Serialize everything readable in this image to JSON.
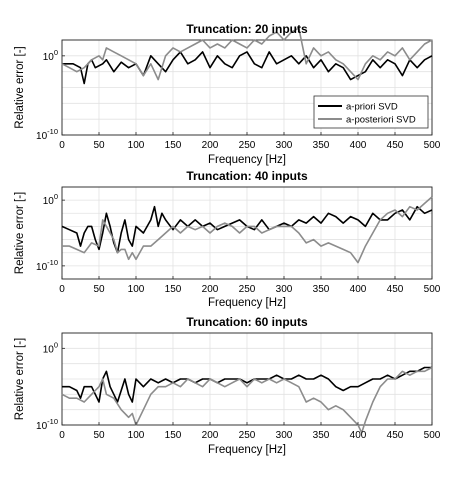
{
  "chart_data": [
    {
      "type": "line",
      "title": "Truncation: 20 inputs",
      "xlabel": "Frequency [Hz]",
      "ylabel": "Relative error [-]",
      "xlim": [
        0,
        500
      ],
      "xticks": [
        0,
        50,
        100,
        150,
        200,
        250,
        300,
        350,
        400,
        450,
        500
      ],
      "yscale": "log",
      "ylim_exp": [
        -10,
        2
      ],
      "yticks": [
        {
          "label": "10",
          "exp": "0",
          "value_exp": 0
        },
        {
          "label": "10",
          "exp": "-10",
          "value_exp": -10
        }
      ],
      "grid": true,
      "legend": {
        "placement": "bottom-right"
      },
      "series": [
        {
          "name": "a-priori SVD",
          "color": "#000000",
          "x": [
            0,
            15,
            25,
            30,
            35,
            40,
            45,
            55,
            60,
            70,
            80,
            90,
            100,
            110,
            120,
            130,
            140,
            150,
            160,
            170,
            180,
            190,
            200,
            210,
            220,
            230,
            240,
            250,
            260,
            270,
            280,
            290,
            300,
            310,
            320,
            330,
            340,
            350,
            360,
            370,
            380,
            390,
            400,
            410,
            420,
            430,
            440,
            450,
            460,
            470,
            480,
            490,
            500
          ],
          "y_exp": [
            -1,
            -1,
            -1.5,
            -3.5,
            -1,
            -0.5,
            -1.5,
            -1,
            -0.5,
            -2,
            -0.8,
            -1.5,
            -1,
            -2.5,
            0,
            -1,
            -2,
            -0.5,
            0.5,
            -1,
            -0.5,
            0.5,
            -1.5,
            0,
            -1,
            -1.5,
            0,
            0.5,
            -1,
            -1.5,
            0.5,
            -1,
            -0.5,
            0,
            -1,
            0,
            -1.5,
            -0.5,
            -2,
            -1,
            -1.5,
            -3,
            -2.5,
            -2,
            -0.5,
            -1.5,
            -0.5,
            -1,
            -2.5,
            -0.5,
            -1.5,
            -0.5,
            0
          ]
        },
        {
          "name": "a-posteriori SVD",
          "color": "#8c8c8c",
          "x": [
            0,
            10,
            20,
            30,
            40,
            50,
            55,
            60,
            70,
            80,
            90,
            100,
            110,
            120,
            130,
            140,
            150,
            160,
            170,
            180,
            190,
            200,
            210,
            220,
            230,
            240,
            250,
            260,
            270,
            280,
            290,
            300,
            310,
            320,
            330,
            340,
            350,
            360,
            370,
            380,
            390,
            400,
            410,
            420,
            430,
            440,
            450,
            460,
            470,
            480,
            490,
            500
          ],
          "y_exp": [
            -1,
            -1.5,
            -2,
            -1.5,
            -0.5,
            0,
            -0.5,
            1,
            0.5,
            0,
            -0.5,
            -1,
            -2.5,
            -1,
            -3,
            0,
            1,
            0.5,
            1,
            1.5,
            2,
            1,
            1.5,
            1,
            2,
            1.5,
            1,
            2,
            1.5,
            2.5,
            3,
            2,
            3,
            3.5,
            -1,
            1,
            0,
            0.5,
            -0.5,
            -1,
            -2,
            -3,
            -1,
            0,
            -0.5,
            0.5,
            0,
            1,
            -0.5,
            0.5,
            1.5,
            2
          ]
        }
      ]
    },
    {
      "type": "line",
      "title": "Truncation: 40 inputs",
      "xlabel": "Frequency [Hz]",
      "ylabel": "Relative error [-]",
      "xlim": [
        0,
        500
      ],
      "xticks": [
        0,
        50,
        100,
        150,
        200,
        250,
        300,
        350,
        400,
        450,
        500
      ],
      "yscale": "log",
      "ylim_exp": [
        -12,
        2
      ],
      "yticks": [
        {
          "label": "10",
          "exp": "0",
          "value_exp": 0
        },
        {
          "label": "10",
          "exp": "-10",
          "value_exp": -10
        }
      ],
      "grid": true,
      "series": [
        {
          "name": "a-priori SVD",
          "color": "#000000",
          "x": [
            0,
            10,
            20,
            25,
            30,
            35,
            40,
            45,
            50,
            55,
            60,
            65,
            70,
            75,
            80,
            85,
            90,
            95,
            100,
            110,
            120,
            125,
            130,
            135,
            140,
            150,
            160,
            170,
            180,
            190,
            200,
            210,
            220,
            230,
            240,
            250,
            260,
            270,
            280,
            290,
            300,
            310,
            320,
            330,
            340,
            350,
            360,
            370,
            380,
            390,
            400,
            410,
            420,
            430,
            440,
            450,
            460,
            470,
            480,
            490,
            500
          ],
          "y_exp": [
            -4,
            -4.5,
            -5,
            -7,
            -5,
            -4,
            -4,
            -6,
            -7.5,
            -5,
            -2,
            -4,
            -6.5,
            -8,
            -5,
            -3,
            -6,
            -7,
            -4,
            -5,
            -3,
            -1,
            -4,
            -2,
            -3,
            -4.5,
            -3,
            -4,
            -3,
            -4,
            -3.5,
            -4.5,
            -4,
            -3.5,
            -3,
            -4,
            -4.5,
            -3,
            -4.5,
            -4,
            -3.5,
            -4,
            -3,
            -3.5,
            -2.5,
            -3.5,
            -2,
            -2.5,
            -3.5,
            -2.5,
            -3,
            -4,
            -2,
            -3,
            -3,
            -2,
            -1.5,
            -3,
            -1,
            -2,
            -1.5
          ]
        },
        {
          "name": "a-posteriori SVD",
          "color": "#8c8c8c",
          "x": [
            0,
            10,
            20,
            30,
            40,
            50,
            55,
            60,
            70,
            75,
            80,
            85,
            90,
            95,
            100,
            110,
            120,
            130,
            140,
            150,
            160,
            170,
            180,
            190,
            200,
            210,
            220,
            230,
            240,
            250,
            260,
            270,
            280,
            290,
            300,
            310,
            320,
            330,
            340,
            350,
            360,
            370,
            380,
            390,
            400,
            410,
            420,
            430,
            440,
            450,
            460,
            470,
            480,
            490,
            500
          ],
          "y_exp": [
            -7,
            -7,
            -7.5,
            -8,
            -6.5,
            -7,
            -3,
            -4,
            -6,
            -8,
            -7.5,
            -7.5,
            -9,
            -8,
            -9,
            -7,
            -7,
            -6,
            -5,
            -4,
            -5,
            -4,
            -4.5,
            -4,
            -5,
            -4,
            -3.5,
            -4,
            -5,
            -4,
            -4,
            -5,
            -4.5,
            -4,
            -4,
            -4,
            -5,
            -6.5,
            -6,
            -7,
            -6.5,
            -7,
            -7.5,
            -8,
            -9.5,
            -7,
            -5,
            -3,
            -2,
            -1.5,
            -2.5,
            -1,
            -1.5,
            -0.5,
            0.5
          ]
        }
      ]
    },
    {
      "type": "line",
      "title": "Truncation: 60 inputs",
      "xlabel": "Frequency [Hz]",
      "ylabel": "Relative error [-]",
      "xlim": [
        0,
        500
      ],
      "xticks": [
        0,
        50,
        100,
        150,
        200,
        250,
        300,
        350,
        400,
        450,
        500
      ],
      "yscale": "log",
      "ylim_exp": [
        -10,
        2
      ],
      "yticks": [
        {
          "label": "10",
          "exp": "0",
          "value_exp": 0
        },
        {
          "label": "10",
          "exp": "-10",
          "value_exp": -10
        }
      ],
      "grid": true,
      "series": [
        {
          "name": "a-priori SVD",
          "color": "#000000",
          "x": [
            0,
            10,
            20,
            25,
            30,
            40,
            45,
            50,
            55,
            60,
            65,
            70,
            75,
            80,
            85,
            90,
            95,
            100,
            110,
            120,
            130,
            140,
            150,
            160,
            170,
            180,
            190,
            200,
            210,
            220,
            230,
            240,
            250,
            260,
            270,
            280,
            290,
            300,
            310,
            320,
            330,
            340,
            350,
            360,
            370,
            380,
            390,
            400,
            410,
            420,
            430,
            440,
            450,
            460,
            470,
            480,
            490,
            500
          ],
          "y_exp": [
            -5,
            -5,
            -5.5,
            -6.5,
            -5,
            -5,
            -6,
            -7,
            -4,
            -3,
            -5,
            -6,
            -7,
            -5.5,
            -4,
            -6,
            -7,
            -4,
            -5,
            -4,
            -4.5,
            -4,
            -4.5,
            -4,
            -4,
            -4.5,
            -4,
            -4,
            -4.5,
            -4,
            -4,
            -4,
            -4.5,
            -4,
            -4,
            -4,
            -3.5,
            -4,
            -4,
            -3.5,
            -4,
            -4,
            -3.5,
            -4,
            -5,
            -5.5,
            -5,
            -5,
            -4.5,
            -4,
            -4,
            -3.5,
            -4,
            -3.5,
            -3,
            -3,
            -2.5,
            -2.5
          ]
        },
        {
          "name": "a-posteriori SVD",
          "color": "#8c8c8c",
          "x": [
            0,
            10,
            20,
            30,
            40,
            45,
            50,
            55,
            60,
            70,
            80,
            90,
            95,
            100,
            105,
            110,
            120,
            130,
            140,
            150,
            160,
            170,
            180,
            190,
            200,
            210,
            220,
            230,
            240,
            250,
            260,
            270,
            280,
            290,
            300,
            310,
            320,
            330,
            340,
            350,
            360,
            370,
            380,
            390,
            400,
            405,
            410,
            420,
            430,
            440,
            450,
            460,
            470,
            480,
            490,
            500
          ],
          "y_exp": [
            -6,
            -6.5,
            -6.5,
            -7,
            -6,
            -5.5,
            -5,
            -4,
            -6,
            -6.5,
            -8,
            -9,
            -8.5,
            -10,
            -9,
            -8,
            -6,
            -5,
            -5,
            -4.5,
            -5,
            -4,
            -4.5,
            -5,
            -4,
            -4.5,
            -5,
            -4.5,
            -4,
            -5,
            -4,
            -4.5,
            -4,
            -4.5,
            -4,
            -4.5,
            -5,
            -7,
            -6.5,
            -7,
            -8,
            -7.5,
            -8,
            -9,
            -10,
            -11,
            -9.5,
            -7,
            -5,
            -4,
            -4,
            -3,
            -3.5,
            -3,
            -3,
            -2.5
          ]
        }
      ]
    }
  ],
  "legend_entries": [
    "a-priori SVD",
    "a-posteriori SVD"
  ]
}
